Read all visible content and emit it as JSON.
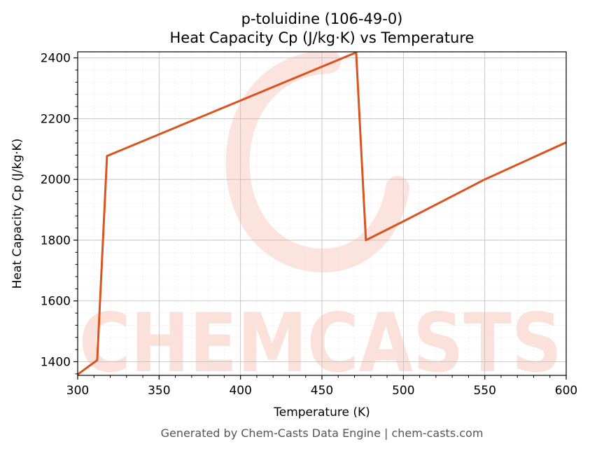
{
  "chart_data": {
    "type": "line",
    "title": "p-toluidine (106-49-0)",
    "subtitle": "Heat Capacity Cp (J/kg·K) vs Temperature",
    "xlabel": "Temperature (K)",
    "ylabel": "Heat Capacity Cp (J/kg·K)",
    "xlim": [
      300,
      600
    ],
    "ylim": [
      1355,
      2420
    ],
    "xticks": [
      300,
      350,
      400,
      450,
      500,
      550,
      600
    ],
    "yticks": [
      1400,
      1600,
      1800,
      2000,
      2200,
      2400
    ],
    "grid": true,
    "line_color": "#d9541e",
    "series": [
      {
        "x": [
          300,
          312,
          318,
          471,
          477,
          500,
          550,
          600
        ],
        "values": [
          1358,
          1405,
          2077,
          2418,
          1800,
          1862,
          2000,
          2122
        ]
      }
    ]
  },
  "watermark": {
    "text": "CHEMCASTS",
    "color": "#fcd9d2"
  },
  "footer": "Generated by Chem-Casts Data Engine | chem-casts.com"
}
